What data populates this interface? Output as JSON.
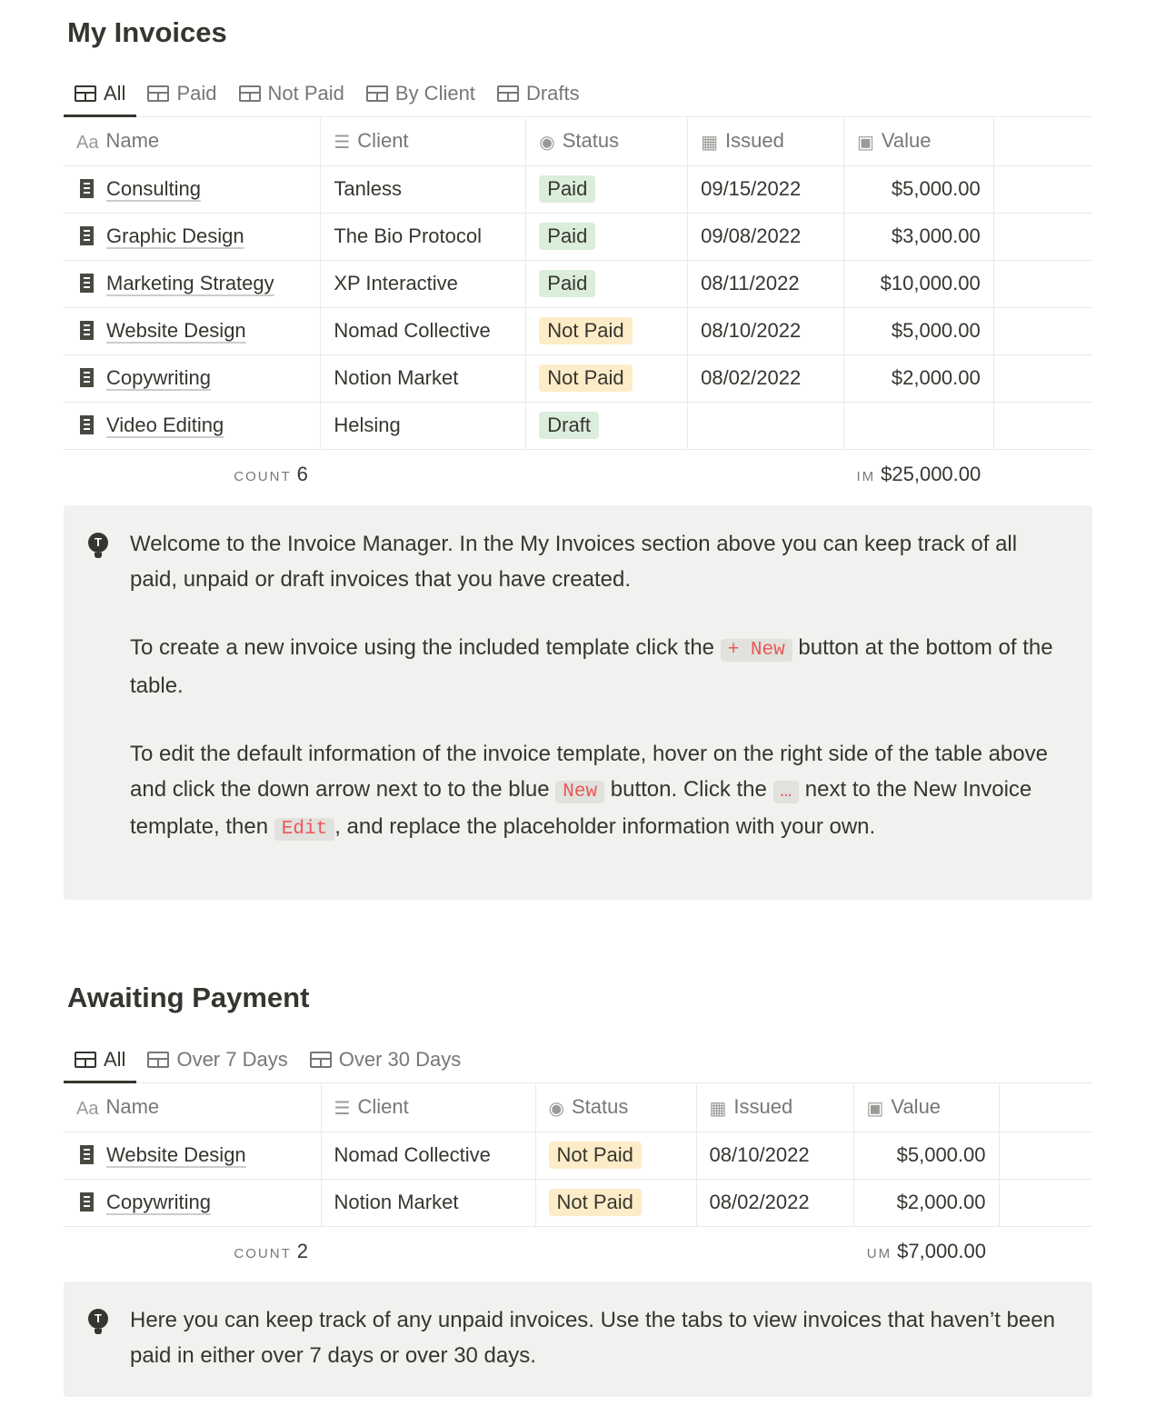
{
  "section1": {
    "title": "My Invoices",
    "tabs": [
      "All",
      "Paid",
      "Not Paid",
      "By Client",
      "Drafts"
    ],
    "columns": [
      "Name",
      "Client",
      "Status",
      "Issued",
      "Value"
    ],
    "rows": [
      {
        "name": "Consulting",
        "client": "Tanless",
        "status": "Paid",
        "issued": "09/15/2022",
        "value": "$5,000.00"
      },
      {
        "name": "Graphic Design",
        "client": "The Bio Protocol",
        "status": "Paid",
        "issued": "09/08/2022",
        "value": "$3,000.00"
      },
      {
        "name": "Marketing Strategy",
        "client": "XP Interactive",
        "status": "Paid",
        "issued": "08/11/2022",
        "value": "$10,000.00"
      },
      {
        "name": "Website Design",
        "client": "Nomad Collective",
        "status": "Not Paid",
        "issued": "08/10/2022",
        "value": "$5,000.00"
      },
      {
        "name": "Copywriting",
        "client": "Notion Market",
        "status": "Not Paid",
        "issued": "08/02/2022",
        "value": "$2,000.00"
      },
      {
        "name": "Video Editing",
        "client": "Helsing",
        "status": "Draft",
        "issued": "",
        "value": ""
      }
    ],
    "count_label": "COUNT",
    "count": "6",
    "sum_label": "IM",
    "sum": "$25,000.00",
    "callout": {
      "p1": "Welcome to the Invoice Manager. In the My Invoices section above you can keep track of all paid, unpaid or draft invoices that you have created.",
      "p2a": "To create a new invoice using the included template click the ",
      "p2code": "+ New",
      "p2b": " button at the bottom of the table.",
      "p3a": "To edit the default information of the invoice template, hover on the right side of the table above and click the down arrow next to to the blue ",
      "p3code1": "New",
      "p3b": " button. Click the ",
      "p3code2": "…",
      "p3c": " next to the New Invoice template, then ",
      "p3code3": "Edit",
      "p3d": ", and replace the placeholder information with your own."
    }
  },
  "section2": {
    "title": "Awaiting Payment",
    "tabs": [
      "All",
      "Over 7 Days",
      "Over 30 Days"
    ],
    "columns": [
      "Name",
      "Client",
      "Status",
      "Issued",
      "Value"
    ],
    "rows": [
      {
        "name": "Website Design",
        "client": "Nomad Collective",
        "status": "Not Paid",
        "issued": "08/10/2022",
        "value": "$5,000.00"
      },
      {
        "name": "Copywriting",
        "client": "Notion Market",
        "status": "Not Paid",
        "issued": "08/02/2022",
        "value": "$2,000.00"
      }
    ],
    "count_label": "COUNT",
    "count": "2",
    "sum_label": "UM",
    "sum": "$7,000.00",
    "callout": "Here you can keep track of any unpaid invoices. Use the tabs to view invoices that haven’t been paid in either over 7 days or over 30 days."
  },
  "icons": {
    "name": "Aa",
    "client": "text-lines-icon",
    "status": "select-icon",
    "issued": "calendar-icon",
    "value": "money-icon",
    "row": "invoice-receipt-icon",
    "callout": "lightbulb-icon"
  }
}
